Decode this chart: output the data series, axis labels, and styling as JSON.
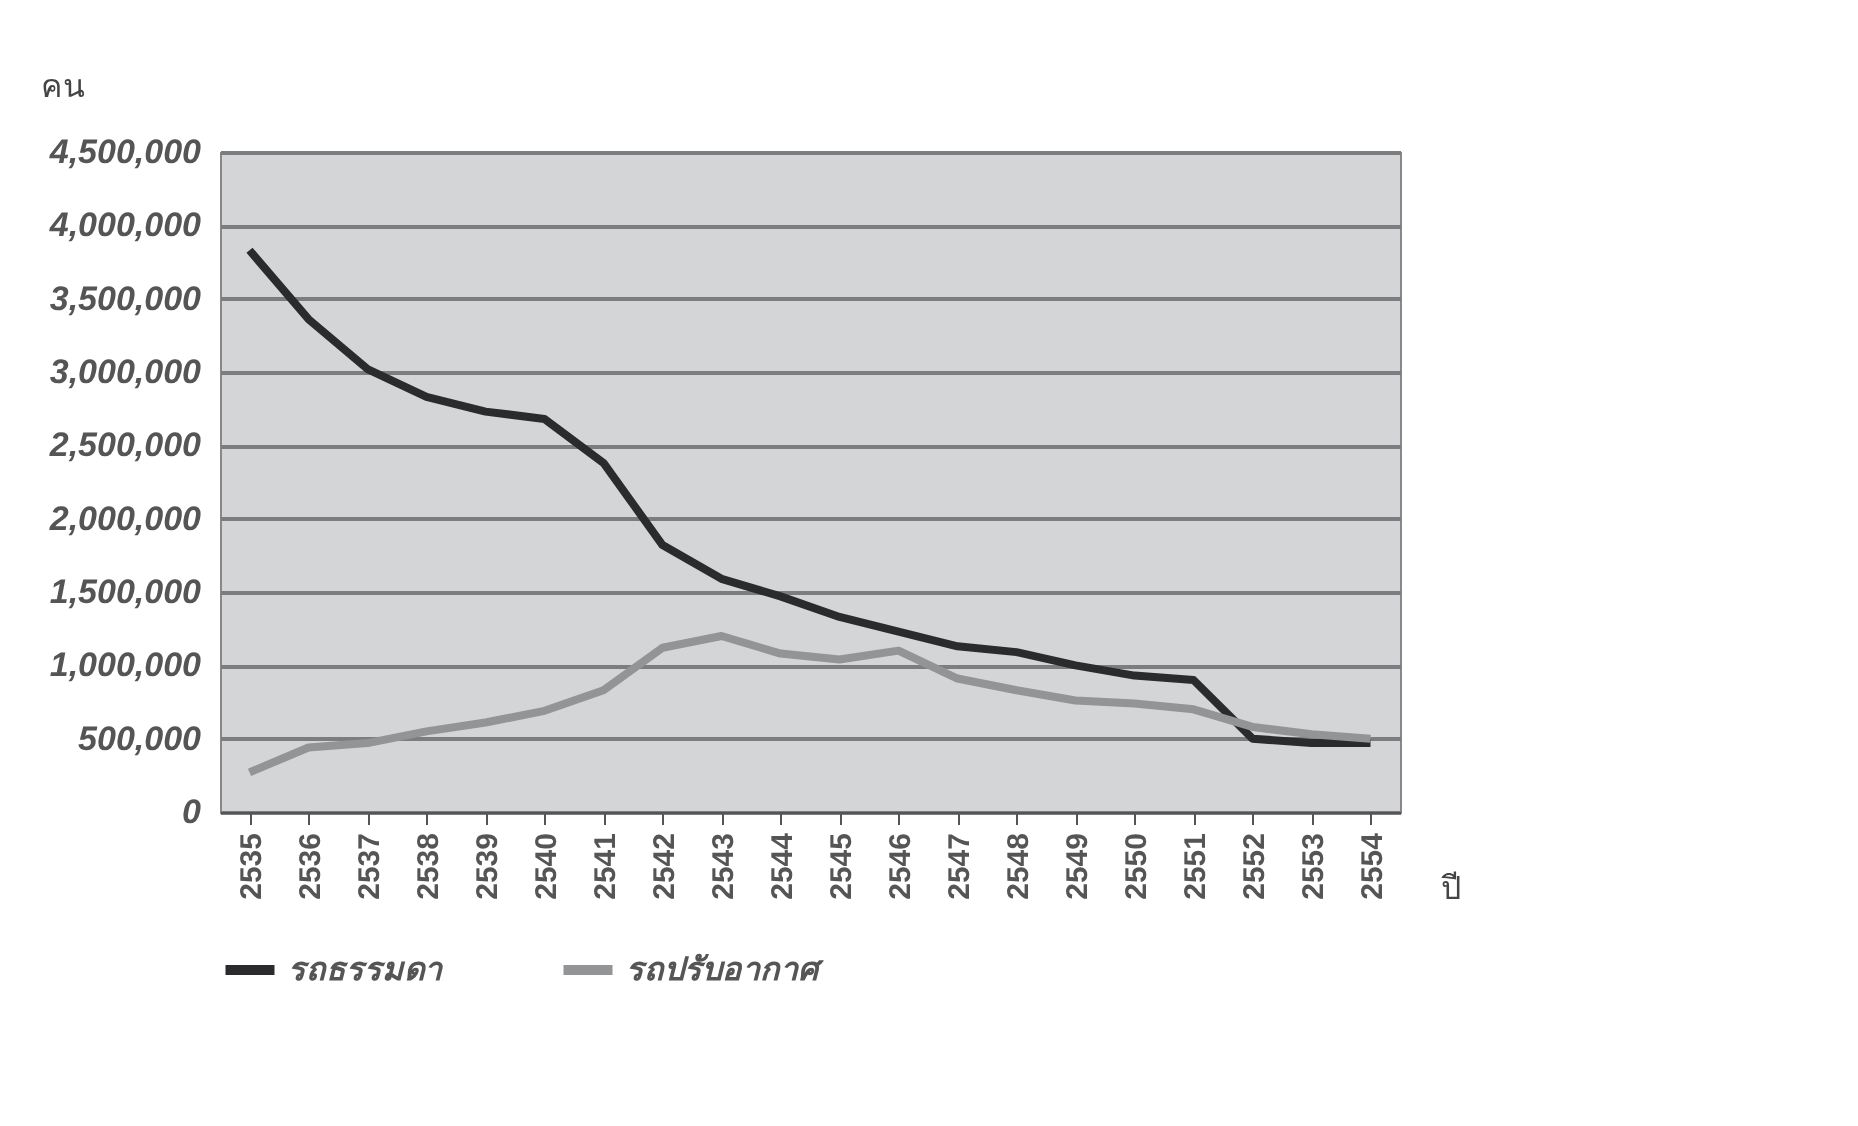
{
  "chart_data": {
    "type": "line",
    "ylabel": "คน",
    "xlabel": "ปี",
    "categories": [
      "2535",
      "2536",
      "2537",
      "2538",
      "2539",
      "2540",
      "2541",
      "2542",
      "2543",
      "2544",
      "2545",
      "2546",
      "2547",
      "2548",
      "2549",
      "2550",
      "2551",
      "2552",
      "2553",
      "2554"
    ],
    "series": [
      {
        "name": "รถธรรมดา",
        "color": "#2b2b2e",
        "values": [
          3830000,
          3360000,
          3020000,
          2830000,
          2730000,
          2680000,
          2380000,
          1820000,
          1590000,
          1470000,
          1330000,
          1230000,
          1130000,
          1090000,
          1000000,
          930000,
          900000,
          500000,
          470000,
          470000
        ]
      },
      {
        "name": "รถปรับอากาศ",
        "color": "#929496",
        "values": [
          270000,
          440000,
          470000,
          550000,
          610000,
          690000,
          830000,
          1120000,
          1200000,
          1080000,
          1040000,
          1100000,
          910000,
          830000,
          760000,
          740000,
          700000,
          580000,
          530000,
          500000
        ]
      }
    ],
    "ylim": [
      0,
      4500000
    ],
    "yticks": [
      0,
      {
        "value": 500000,
        "label": "500,000"
      },
      {
        "value": 1000000,
        "label": "1,000,000"
      },
      {
        "value": 1500000,
        "label": "1,500,000"
      },
      {
        "value": 2000000,
        "label": "2,000,000"
      },
      {
        "value": 2500000,
        "label": "2,500,000"
      },
      {
        "value": 3000000,
        "label": "3,000,000"
      },
      {
        "value": 3500000,
        "label": "3,500,000"
      },
      {
        "value": 4000000,
        "label": "4,000,000"
      },
      {
        "value": 4500000,
        "label": "4,500,000"
      }
    ],
    "grid": "y",
    "legend": "bottom",
    "marker": "none",
    "line_style": "solid"
  }
}
